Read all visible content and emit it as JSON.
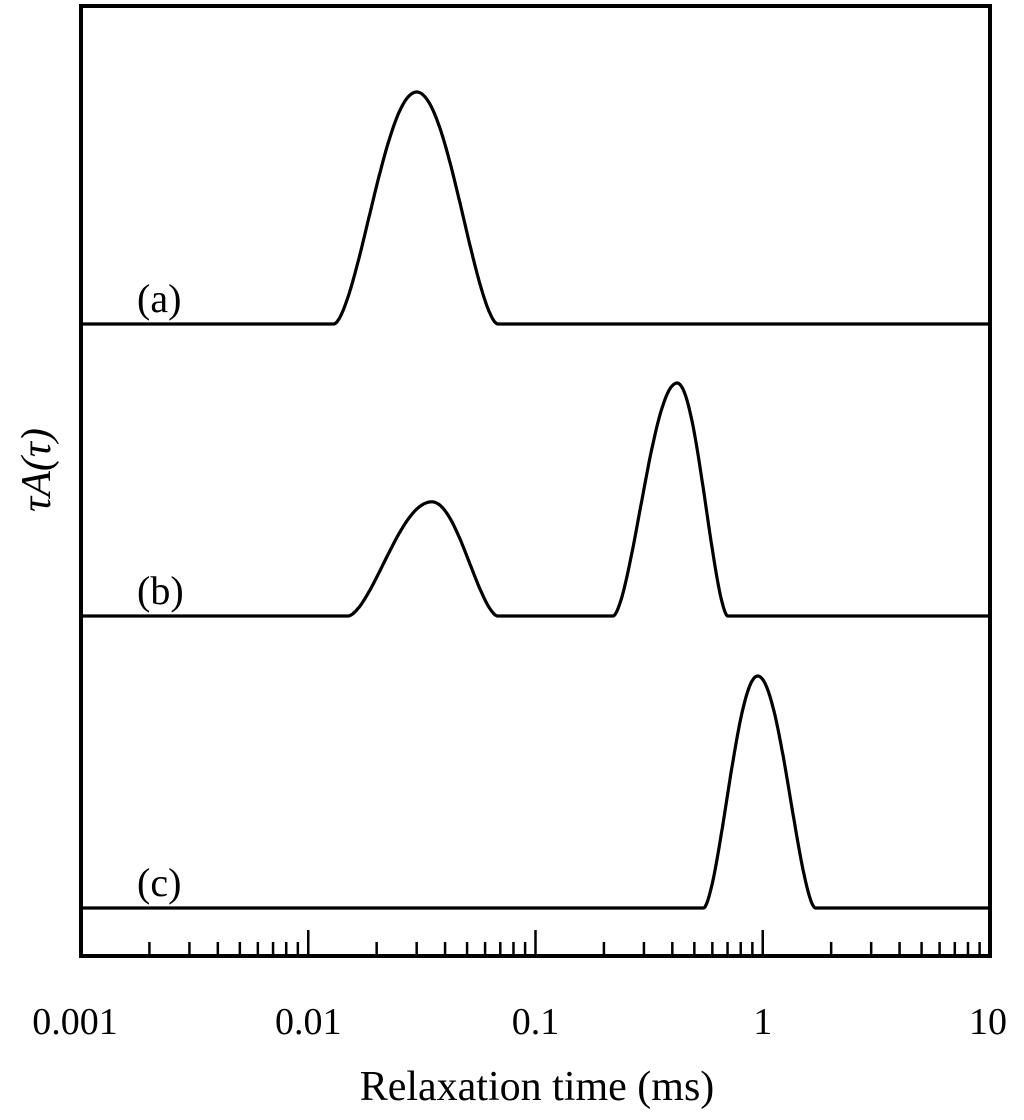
{
  "chart_data": {
    "type": "line",
    "x_scale": "log",
    "xlim": [
      0.001,
      10
    ],
    "xlabel": "Relaxation time (ms)",
    "ylabel": "τA(τ)",
    "x_tick_labels": [
      "0.001",
      "0.01",
      "0.1",
      "1",
      "10"
    ],
    "x_ticks": [
      0.001,
      0.01,
      0.1,
      1,
      10
    ],
    "grid": false,
    "legend": "none",
    "panels": [
      {
        "label": "(a)",
        "peaks": [
          {
            "center": 0.03,
            "start": 0.013,
            "end": 0.068,
            "height": 1.0
          }
        ]
      },
      {
        "label": "(b)",
        "peaks": [
          {
            "center": 0.035,
            "start": 0.015,
            "end": 0.068,
            "height": 0.49
          },
          {
            "center": 0.42,
            "start": 0.22,
            "end": 0.7,
            "height": 1.0
          }
        ]
      },
      {
        "label": "(c)",
        "peaks": [
          {
            "center": 0.95,
            "start": 0.55,
            "end": 1.7,
            "height": 1.0
          }
        ]
      }
    ]
  }
}
